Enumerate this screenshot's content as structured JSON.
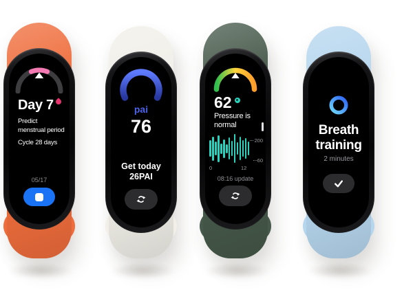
{
  "scene": {
    "background_color": "#ffffff"
  },
  "bands": [
    {
      "name": "period-tracking-band",
      "strap_color": "#ef6d3c",
      "screen": {
        "gauge": {
          "track_color": "#3d3d40",
          "segment_color": "#f478b1",
          "pointer_color": "#ffffff"
        },
        "title": "Day 7",
        "drop_icon": "drop-icon",
        "drop_color": "#e8336e",
        "line1": "Predict",
        "line2": "menstrual period",
        "line3": "Cycle 28 days",
        "date": "05/17",
        "button": {
          "color": "#1a72f4",
          "icon": "stop-square-icon"
        }
      }
    },
    {
      "name": "pai-band",
      "strap_color": "#f1efe8",
      "screen": {
        "arc_top_color": "#5e7bff",
        "arc_bottom_color": "#27379d",
        "label": "pai",
        "label_color": "#4d63e9",
        "value": "76",
        "line1": "Get today",
        "line2": "26PAI",
        "button": {
          "color": "#2c2c2e",
          "icon": "sync-icon"
        }
      }
    },
    {
      "name": "stress-band",
      "strap_color": "#46594a",
      "screen": {
        "gauge_colors": [
          "#2fbf4e",
          "#ffd43b",
          "#ff9d2c"
        ],
        "pointer_color": "#ffffff",
        "value": "62",
        "dot_color": "#2ad3bd",
        "line1": "Pressure is",
        "line2": "normal",
        "chart": {
          "bar_color": "#2ad3bd",
          "values": [
            55,
            80,
            45,
            88,
            35,
            62,
            30,
            72,
            50,
            95,
            40,
            78,
            55,
            68,
            45
          ],
          "y_max": "200",
          "y_min": "60",
          "x_start": "0",
          "x_end": "12"
        },
        "update_text": "08:16 update",
        "button": {
          "color": "#2c2c2e",
          "icon": "sync-icon"
        }
      }
    },
    {
      "name": "breath-band",
      "strap_color": "#b6d6ee",
      "screen": {
        "ring_icon": "breath-ring-icon",
        "ring_start_color": "#2e63f6",
        "ring_end_color": "#6fd9f9",
        "title1": "Breath",
        "title2": "training",
        "subtitle": "2 minutes",
        "button": {
          "color": "#2c2c2e",
          "icon": "check-icon"
        }
      }
    }
  ],
  "chart_data": {
    "type": "bar",
    "title": "",
    "xlabel": "",
    "ylabel": "",
    "x_tick_labels": [
      "0",
      "12"
    ],
    "y_tick_labels": [
      "60",
      "200"
    ],
    "ylim": [
      60,
      200
    ],
    "bar_color": "#2ad3bd",
    "centered_bars": true,
    "values_relative_pct": [
      55,
      80,
      45,
      88,
      35,
      62,
      30,
      72,
      50,
      95,
      40,
      78,
      55,
      68,
      45
    ]
  }
}
